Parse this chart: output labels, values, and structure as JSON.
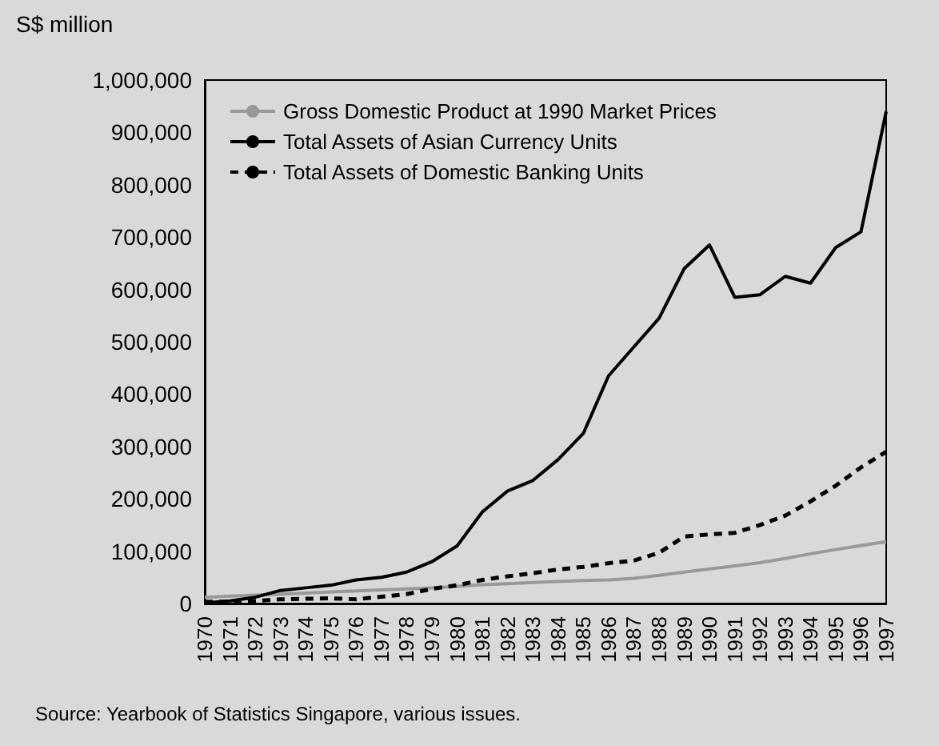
{
  "chart_data": {
    "type": "line",
    "ylabel": "S$ million",
    "categories": [
      "1970",
      "1971",
      "1972",
      "1973",
      "1974",
      "1975",
      "1976",
      "1977",
      "1978",
      "1979",
      "1980",
      "1981",
      "1982",
      "1983",
      "1984",
      "1985",
      "1986",
      "1987",
      "1988",
      "1989",
      "1990",
      "1991",
      "1992",
      "1993",
      "1994",
      "1995",
      "1996",
      "1997"
    ],
    "series": [
      {
        "name": "Gross Domestic Product at 1990 Market Prices",
        "color": "#999999",
        "line_style": "solid",
        "values": [
          12000,
          14000,
          16000,
          18000,
          20000,
          22000,
          24000,
          26000,
          28000,
          30000,
          33000,
          36000,
          38000,
          40000,
          42000,
          44000,
          45000,
          48000,
          54000,
          60000,
          66000,
          72000,
          78000,
          86000,
          95000,
          103000,
          111000,
          118000
        ]
      },
      {
        "name": "Total Assets of Asian Currency Units",
        "color": "#000000",
        "line_style": "solid",
        "values": [
          1000,
          5000,
          12000,
          25000,
          30000,
          35000,
          45000,
          50000,
          60000,
          80000,
          110000,
          175000,
          215000,
          235000,
          275000,
          325000,
          435000,
          490000,
          545000,
          640000,
          685000,
          585000,
          590000,
          625000,
          612000,
          680000,
          710000,
          940000
        ]
      },
      {
        "name": "Total Assets of Domestic Banking Units",
        "color": "#000000",
        "line_style": "dashed",
        "values": [
          3000,
          4000,
          5000,
          8000,
          9000,
          10000,
          8000,
          13000,
          18000,
          28000,
          35000,
          45000,
          52000,
          58000,
          65000,
          70000,
          77000,
          82000,
          97000,
          128000,
          132000,
          135000,
          150000,
          168000,
          195000,
          225000,
          260000,
          290000
        ]
      }
    ],
    "ylim": [
      0,
      1000000
    ],
    "yticks": [
      {
        "value": 0,
        "label": "0"
      },
      {
        "value": 100000,
        "label": "100,000"
      },
      {
        "value": 200000,
        "label": "200,000"
      },
      {
        "value": 300000,
        "label": "300,000"
      },
      {
        "value": 400000,
        "label": "400,000"
      },
      {
        "value": 500000,
        "label": "500,000"
      },
      {
        "value": 600000,
        "label": "600,000"
      },
      {
        "value": 700000,
        "label": "700,000"
      },
      {
        "value": 800000,
        "label": "800,000"
      },
      {
        "value": 900000,
        "label": "900,000"
      },
      {
        "value": 1000000,
        "label": "1,000,000"
      }
    ],
    "grid": false,
    "legend": "top left",
    "marker": "none",
    "annotations": [
      "Source: Yearbook of Statistics Singapore, various issues."
    ]
  }
}
